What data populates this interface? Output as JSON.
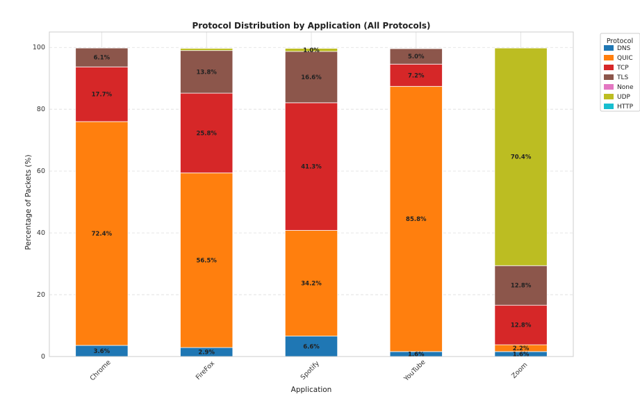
{
  "chart_data": {
    "type": "bar",
    "stacked": true,
    "title": "Protocol Distribution by Application (All Protocols)",
    "xlabel": "Application",
    "ylabel": "Percentage of Packets (%)",
    "ylim": [
      0,
      100
    ],
    "yticks": [
      "0",
      "20",
      "40",
      "60",
      "80",
      "100"
    ],
    "categories": [
      "Chrome",
      "FireFox",
      "Spotify",
      "YouTube",
      "Zoom"
    ],
    "grid": true,
    "legend": {
      "title": "Protocol",
      "placement": "outside-top-right"
    },
    "series": [
      {
        "name": "DNS",
        "color": "#1f77b4",
        "values": [
          3.6,
          2.9,
          6.6,
          1.6,
          1.6
        ],
        "labels": [
          "3.6%",
          "2.9%",
          "6.6%",
          "1.6%",
          "1.6%"
        ]
      },
      {
        "name": "QUIC",
        "color": "#ff7f0e",
        "values": [
          72.4,
          56.5,
          34.2,
          85.8,
          2.2
        ],
        "labels": [
          "72.4%",
          "56.5%",
          "34.2%",
          "85.8%",
          "2.2%"
        ]
      },
      {
        "name": "TCP",
        "color": "#d62728",
        "values": [
          17.7,
          25.8,
          41.3,
          7.2,
          12.8
        ],
        "labels": [
          "17.7%",
          "25.8%",
          "41.3%",
          "7.2%",
          "12.8%"
        ]
      },
      {
        "name": "TLS",
        "color": "#8c564b",
        "values": [
          6.1,
          13.8,
          16.6,
          5.0,
          12.8
        ],
        "labels": [
          "6.1%",
          "13.8%",
          "16.6%",
          "5.0%",
          "12.8%"
        ]
      },
      {
        "name": "None",
        "color": "#e377c2",
        "values": [
          0,
          0,
          0,
          0,
          0
        ],
        "labels": [
          "",
          "",
          "",
          "",
          ""
        ]
      },
      {
        "name": "UDP",
        "color": "#bcbd22",
        "values": [
          0,
          0.7,
          1.0,
          0,
          70.4
        ],
        "labels": [
          "",
          "",
          "1.0%",
          "",
          "70.4%"
        ]
      },
      {
        "name": "HTTP",
        "color": "#17becf",
        "values": [
          0,
          0,
          0,
          0,
          0
        ],
        "labels": [
          "",
          "",
          "",
          "",
          ""
        ]
      }
    ]
  }
}
